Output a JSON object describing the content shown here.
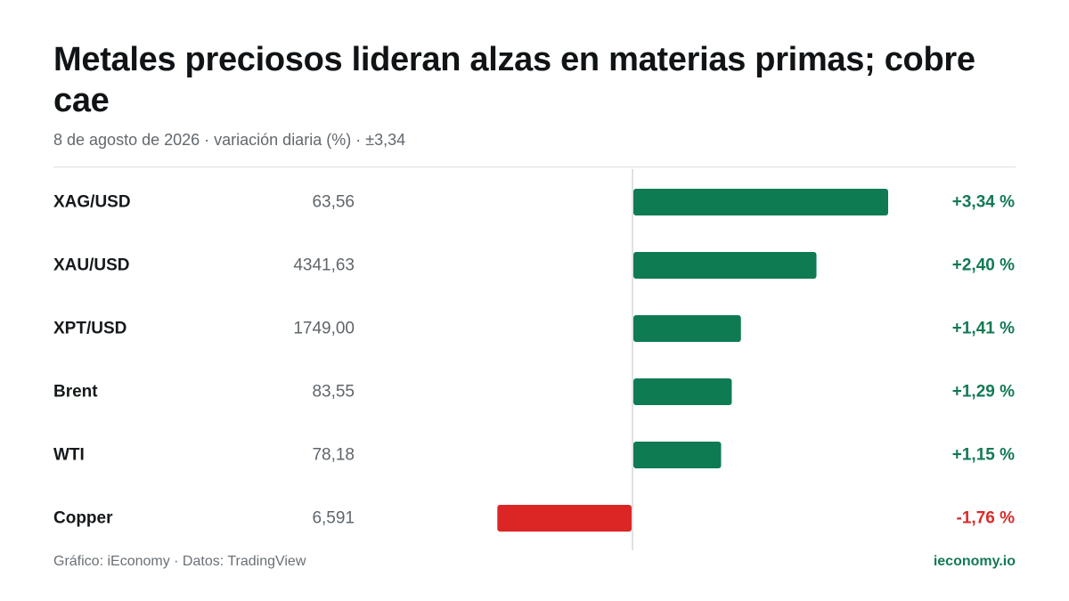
{
  "header": {
    "title": "Metales preciosos lideran alzas en materias primas; cobre cae",
    "subtitle": "8 de agosto de 2026 · variación diaria (%) · ±3,34"
  },
  "footer": {
    "source": "Gráfico: iEconomy · Datos: TradingView",
    "brand": "ieconomy.io"
  },
  "colors": {
    "positive": "#0f7b52",
    "negative": "#dc2626",
    "positive_text": "#137a54",
    "negative_text": "#d92b2b"
  },
  "chart_data": {
    "type": "bar",
    "orientation": "horizontal",
    "categories": [
      "XAG/USD",
      "XAU/USD",
      "XPT/USD",
      "Brent",
      "WTI",
      "Copper"
    ],
    "prices": [
      "63,56",
      "4341,63",
      "1749,00",
      "83,55",
      "78,18",
      "6,591"
    ],
    "values": [
      3.34,
      2.4,
      1.41,
      1.29,
      1.15,
      -1.76
    ],
    "value_labels": [
      "+3,34 %",
      "+2,40 %",
      "+1,41 %",
      "+1,29 %",
      "+1,15 %",
      "-1,76 %"
    ],
    "xlim": [
      -3.34,
      3.34
    ],
    "grid": false
  }
}
